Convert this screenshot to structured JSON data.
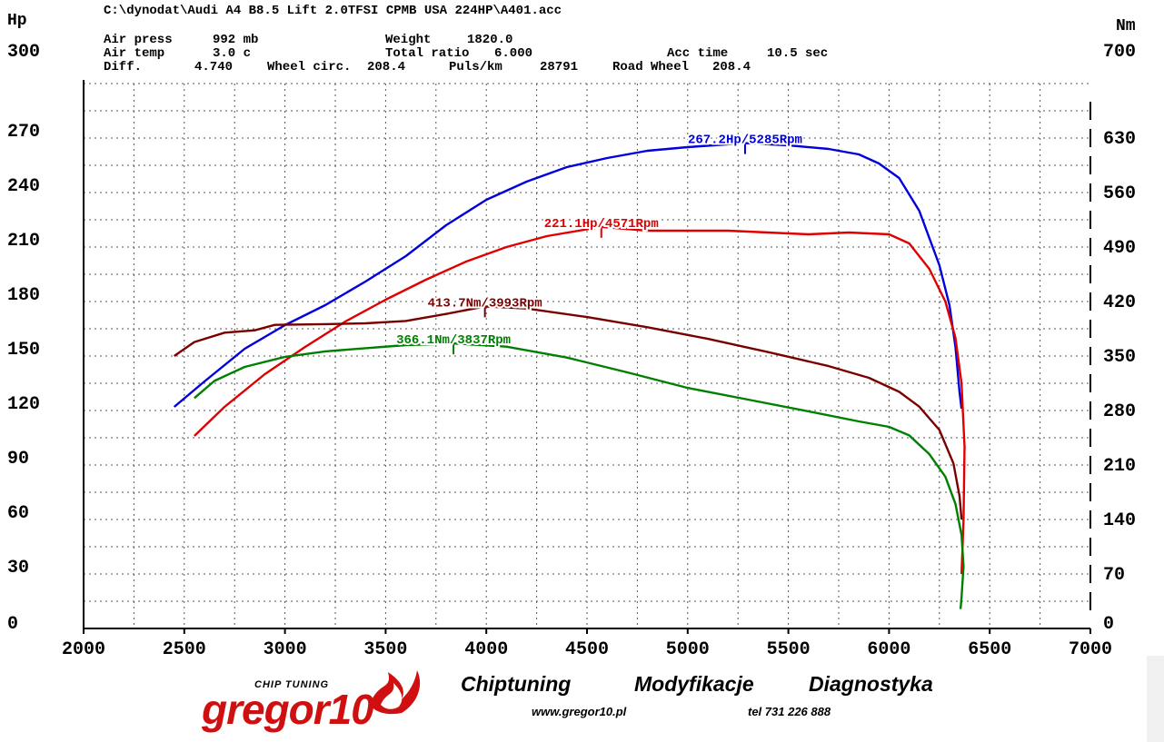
{
  "header": {
    "file_path": "C:\\dynodat\\Audi A4 B8.5 Lift 2.0TFSI CPMB USA 224HP\\A401.acc",
    "air_press_label": "Air press",
    "air_press_value": "992 mb",
    "air_temp_label": "Air temp",
    "air_temp_value": "3.0 c",
    "diff_label": "Diff.",
    "diff_value": "4.740",
    "wheel_circ_label": "Wheel circ.",
    "wheel_circ_value": "208.4",
    "weight_label": "Weight",
    "weight_value": "1820.0",
    "total_ratio_label": "Total ratio",
    "total_ratio_value": "6.000",
    "puls_km_label": "Puls/km",
    "puls_km_value": "28791",
    "road_wheel_label": "Road Wheel",
    "road_wheel_value": "208.4",
    "acc_time_label": "Acc time",
    "acc_time_value": "10.5 sec"
  },
  "footer": {
    "logo_sub": "CHIP TUNING",
    "logo_main": "gregor10",
    "tag_chiptuning": "Chiptuning",
    "tag_modyfikacje": "Modyfikacje",
    "tag_diagnostyka": "Diagnostyka",
    "website": "www.gregor10.pl",
    "phone": "tel 731 226 888"
  },
  "chart_data": {
    "type": "line",
    "left_axis_unit": "Hp",
    "right_axis_unit": "Nm",
    "xlim": [
      2000,
      7000
    ],
    "ylim_left": [
      0,
      300
    ],
    "ylim_right": [
      0,
      700
    ],
    "x_ticks": [
      "2000",
      "2500",
      "3000",
      "3500",
      "4000",
      "4500",
      "5000",
      "5500",
      "6000",
      "6500",
      "7000"
    ],
    "y_left_ticks": [
      "0",
      "30",
      "60",
      "90",
      "120",
      "150",
      "180",
      "210",
      "240",
      "270",
      "300"
    ],
    "y_right_ticks": [
      "0",
      "70",
      "140",
      "210",
      "280",
      "350",
      "420",
      "490",
      "560",
      "630",
      "700"
    ],
    "grid": true,
    "colors": {
      "blue": "#0000dd",
      "red": "#e00000",
      "maroon": "#7a0000",
      "green": "#008000"
    },
    "series": [
      {
        "key": "power_tuned",
        "axis": "left",
        "color": "#0000dd",
        "peak_label": "267.2Hp/5285Rpm",
        "peak_x": 5285,
        "peak_y": 267.2,
        "points": [
          [
            2450,
            122
          ],
          [
            2600,
            136
          ],
          [
            2800,
            154
          ],
          [
            3000,
            167
          ],
          [
            3200,
            178
          ],
          [
            3400,
            191
          ],
          [
            3600,
            205
          ],
          [
            3800,
            222
          ],
          [
            4000,
            236
          ],
          [
            4200,
            246
          ],
          [
            4400,
            254
          ],
          [
            4600,
            259
          ],
          [
            4800,
            263
          ],
          [
            5000,
            265
          ],
          [
            5285,
            267.2
          ],
          [
            5500,
            266
          ],
          [
            5700,
            264
          ],
          [
            5850,
            261
          ],
          [
            5950,
            256
          ],
          [
            6050,
            248
          ],
          [
            6150,
            230
          ],
          [
            6250,
            200
          ],
          [
            6300,
            178
          ],
          [
            6330,
            155
          ],
          [
            6350,
            130
          ],
          [
            6360,
            121
          ]
        ]
      },
      {
        "key": "power_stock",
        "axis": "left",
        "color": "#e00000",
        "peak_label": "221.1Hp/4571Rpm",
        "peak_x": 4571,
        "peak_y": 221.1,
        "points": [
          [
            2550,
            106
          ],
          [
            2700,
            122
          ],
          [
            2900,
            140
          ],
          [
            3100,
            155
          ],
          [
            3300,
            169
          ],
          [
            3500,
            181
          ],
          [
            3700,
            192
          ],
          [
            3900,
            202
          ],
          [
            4100,
            210
          ],
          [
            4300,
            216
          ],
          [
            4571,
            221.1
          ],
          [
            4800,
            219
          ],
          [
            5000,
            219
          ],
          [
            5200,
            219
          ],
          [
            5400,
            218
          ],
          [
            5600,
            217
          ],
          [
            5800,
            218
          ],
          [
            6000,
            217
          ],
          [
            6100,
            212
          ],
          [
            6200,
            198
          ],
          [
            6280,
            180
          ],
          [
            6330,
            160
          ],
          [
            6360,
            135
          ],
          [
            6375,
            100
          ],
          [
            6370,
            60
          ],
          [
            6360,
            30
          ]
        ]
      },
      {
        "key": "torque_tuned",
        "axis": "right",
        "color": "#7a0000",
        "peak_label": "413.7Nm/3993Rpm",
        "peak_x": 3993,
        "peak_y": 413.7,
        "points": [
          [
            2450,
            350
          ],
          [
            2550,
            368
          ],
          [
            2700,
            380
          ],
          [
            2850,
            383
          ],
          [
            2950,
            390
          ],
          [
            3200,
            391
          ],
          [
            3400,
            392
          ],
          [
            3600,
            395
          ],
          [
            3800,
            404
          ],
          [
            3993,
            413.7
          ],
          [
            4200,
            411
          ],
          [
            4500,
            400
          ],
          [
            4800,
            387
          ],
          [
            5100,
            372
          ],
          [
            5400,
            355
          ],
          [
            5700,
            337
          ],
          [
            5900,
            322
          ],
          [
            6050,
            304
          ],
          [
            6150,
            285
          ],
          [
            6250,
            255
          ],
          [
            6320,
            212
          ],
          [
            6350,
            170
          ],
          [
            6360,
            140
          ]
        ]
      },
      {
        "key": "torque_stock",
        "axis": "right",
        "color": "#008000",
        "peak_label": "366.1Nm/3837Rpm",
        "peak_x": 3837,
        "peak_y": 366.1,
        "points": [
          [
            2550,
            296
          ],
          [
            2650,
            318
          ],
          [
            2800,
            336
          ],
          [
            3000,
            349
          ],
          [
            3200,
            356
          ],
          [
            3400,
            360
          ],
          [
            3600,
            364
          ],
          [
            3837,
            366.1
          ],
          [
            4100,
            362
          ],
          [
            4400,
            348
          ],
          [
            4700,
            329
          ],
          [
            5000,
            309
          ],
          [
            5300,
            294
          ],
          [
            5600,
            279
          ],
          [
            5850,
            266
          ],
          [
            6000,
            259
          ],
          [
            6100,
            248
          ],
          [
            6200,
            224
          ],
          [
            6280,
            195
          ],
          [
            6330,
            160
          ],
          [
            6360,
            120
          ],
          [
            6370,
            80
          ],
          [
            6360,
            40
          ],
          [
            6355,
            25
          ]
        ]
      }
    ]
  }
}
